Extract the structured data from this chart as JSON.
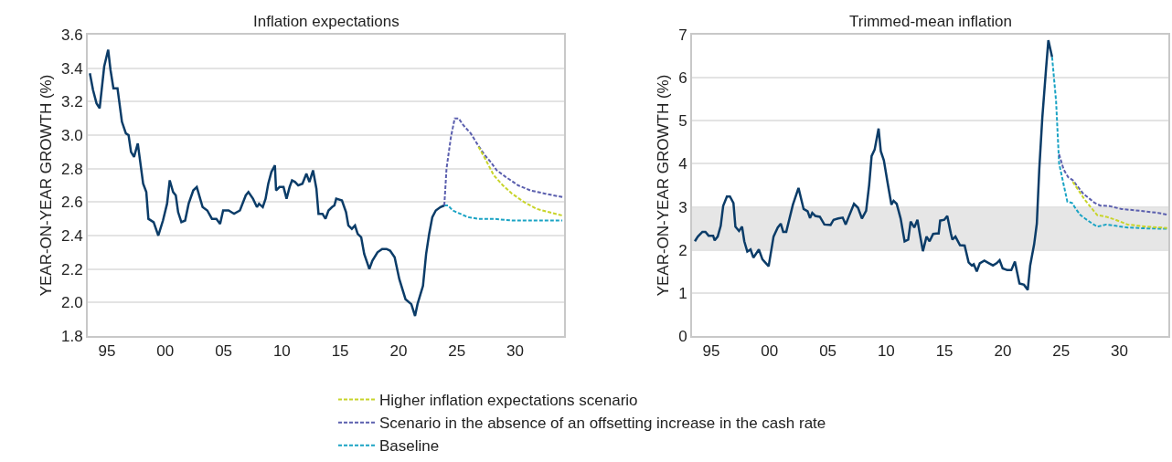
{
  "chart_data": [
    {
      "type": "line",
      "title": "Inflation expectations",
      "ylabel": "YEAR-ON-YEAR GROWTH (%)",
      "xlim": [
        1993.35,
        2034.2
      ],
      "xticks": [
        {
          "value": 1995,
          "label": "95"
        },
        {
          "value": 2000,
          "label": "00"
        },
        {
          "value": 2005,
          "label": "05"
        },
        {
          "value": 2010,
          "label": "10"
        },
        {
          "value": 2015,
          "label": "15"
        },
        {
          "value": 2020,
          "label": "20"
        },
        {
          "value": 2025,
          "label": "25"
        },
        {
          "value": 2030,
          "label": "30"
        }
      ],
      "ylim": [
        1.8,
        3.6
      ],
      "yticks": [
        {
          "value": 1.8,
          "label": "1.8"
        },
        {
          "value": 2.0,
          "label": "2.0"
        },
        {
          "value": 2.2,
          "label": "2.2"
        },
        {
          "value": 2.4,
          "label": "2.4"
        },
        {
          "value": 2.6,
          "label": "2.6"
        },
        {
          "value": 2.8,
          "label": "2.8"
        },
        {
          "value": 3.0,
          "label": "3.0"
        },
        {
          "value": 3.2,
          "label": "3.2"
        },
        {
          "value": 3.4,
          "label": "3.4"
        },
        {
          "value": 3.6,
          "label": "3.6"
        }
      ],
      "grid": "y",
      "legend": "bottom",
      "series": [
        {
          "color": "#0b3c68",
          "line_style": "solid",
          "x": [
            1993.53,
            1993.8,
            1994.1,
            1994.37,
            1994.76,
            1995.1,
            1995.3,
            1995.55,
            1995.9,
            1996.28,
            1996.62,
            1996.85,
            1997.06,
            1997.32,
            1997.64,
            1998.1,
            1998.37,
            1998.55,
            1999.0,
            1999.4,
            1999.8,
            2000.15,
            2000.38,
            2000.67,
            2000.9,
            2001.1,
            2001.38,
            2001.7,
            2002.0,
            2002.4,
            2002.7,
            2003.2,
            2003.6,
            2004.0,
            2004.38,
            2004.7,
            2004.96,
            2005.43,
            2005.9,
            2006.4,
            2006.9,
            2007.13,
            2007.52,
            2007.86,
            2008.04,
            2008.36,
            2008.6,
            2008.83,
            2009.1,
            2009.4,
            2009.5,
            2009.8,
            2010.14,
            2010.4,
            2010.66,
            2010.87,
            2011.13,
            2011.4,
            2011.76,
            2012.1,
            2012.36,
            2012.67,
            2012.96,
            2013.14,
            2013.48,
            2013.74,
            2014.0,
            2014.3,
            2014.5,
            2014.66,
            2015.15,
            2015.5,
            2015.7,
            2016.0,
            2016.27,
            2016.5,
            2016.8,
            2017.06,
            2017.5,
            2017.76,
            2018.2,
            2018.6,
            2018.97,
            2019.28,
            2019.67,
            2020.07,
            2020.6,
            2021.1,
            2021.42,
            2021.63,
            2022.1,
            2022.37,
            2022.63,
            2022.9,
            2023.2,
            2023.6,
            2023.93
          ],
          "values": [
            3.37,
            3.27,
            3.19,
            3.16,
            3.41,
            3.51,
            3.39,
            3.28,
            3.28,
            3.08,
            3.01,
            3.0,
            2.9,
            2.87,
            2.95,
            2.71,
            2.66,
            2.5,
            2.48,
            2.4,
            2.49,
            2.59,
            2.73,
            2.66,
            2.64,
            2.54,
            2.48,
            2.49,
            2.59,
            2.67,
            2.69,
            2.57,
            2.55,
            2.5,
            2.5,
            2.47,
            2.55,
            2.55,
            2.53,
            2.55,
            2.64,
            2.66,
            2.62,
            2.57,
            2.59,
            2.57,
            2.62,
            2.71,
            2.78,
            2.82,
            2.67,
            2.69,
            2.69,
            2.62,
            2.69,
            2.73,
            2.72,
            2.7,
            2.71,
            2.77,
            2.72,
            2.79,
            2.68,
            2.53,
            2.53,
            2.5,
            2.55,
            2.57,
            2.58,
            2.62,
            2.61,
            2.54,
            2.46,
            2.44,
            2.46,
            2.41,
            2.39,
            2.29,
            2.2,
            2.25,
            2.3,
            2.32,
            2.32,
            2.31,
            2.27,
            2.14,
            2.02,
            1.99,
            1.92,
            1.99,
            2.1,
            2.29,
            2.41,
            2.51,
            2.55,
            2.57,
            2.58
          ]
        },
        {
          "name": "Higher inflation expectations scenario",
          "color": "#c8d42a",
          "line_style": "dashed",
          "x": [
            2026.86,
            2027.5,
            2028.17,
            2028.95,
            2029.74,
            2030.78,
            2031.83,
            2032.9,
            2034.05
          ],
          "values": [
            2.93,
            2.85,
            2.76,
            2.7,
            2.65,
            2.6,
            2.56,
            2.54,
            2.52
          ]
        },
        {
          "name": "Scenario in the absence of an offsetting increase in the cash rate",
          "color": "#5b5fae",
          "line_style": "dashed",
          "x": [
            2023.93,
            2024.12,
            2024.5,
            2024.82,
            2025.16,
            2025.55,
            2026.2,
            2026.73,
            2027.4,
            2027.9,
            2028.43,
            2029.2,
            2030.26,
            2031.3,
            2032.6,
            2034.05
          ],
          "values": [
            2.58,
            2.8,
            2.99,
            3.1,
            3.1,
            3.06,
            3.01,
            2.95,
            2.88,
            2.84,
            2.79,
            2.75,
            2.7,
            2.67,
            2.65,
            2.63
          ]
        },
        {
          "name": "Baseline",
          "color": "#1aa3c4",
          "line_style": "dashed",
          "x": [
            2023.93,
            2024.25,
            2024.64,
            2025.3,
            2025.95,
            2026.86,
            2028.17,
            2029.74,
            2031.3,
            2034.05
          ],
          "values": [
            2.58,
            2.58,
            2.55,
            2.53,
            2.51,
            2.5,
            2.5,
            2.49,
            2.49,
            2.49
          ]
        }
      ]
    },
    {
      "type": "line",
      "title": "Trimmed-mean inflation",
      "ylabel": "YEAR-ON-YEAR GROWTH (%)",
      "xlim": [
        1993.35,
        2034.2
      ],
      "xticks": [
        {
          "value": 1995,
          "label": "95"
        },
        {
          "value": 2000,
          "label": "00"
        },
        {
          "value": 2005,
          "label": "05"
        },
        {
          "value": 2010,
          "label": "10"
        },
        {
          "value": 2015,
          "label": "15"
        },
        {
          "value": 2020,
          "label": "20"
        },
        {
          "value": 2025,
          "label": "25"
        },
        {
          "value": 2030,
          "label": "30"
        }
      ],
      "ylim": [
        0,
        7
      ],
      "yticks": [
        0,
        1,
        2,
        3,
        4,
        5,
        6,
        7
      ],
      "grid": "y",
      "bands": [
        {
          "axis": "y",
          "from": 2,
          "to": 3,
          "color": "#e6e6e6"
        }
      ],
      "series": [
        {
          "color": "#0b3c68",
          "line_style": "solid",
          "x": [
            1993.59,
            1993.85,
            1994.24,
            1994.5,
            1994.77,
            1995.16,
            1995.29,
            1995.55,
            1995.81,
            1996.02,
            1996.34,
            1996.6,
            1996.9,
            1997.07,
            1997.38,
            1997.64,
            1997.83,
            1998.09,
            1998.37,
            1998.61,
            1999.08,
            1999.39,
            1999.92,
            2000.34,
            2000.7,
            2000.96,
            2001.17,
            2001.43,
            2002.0,
            2002.48,
            2002.92,
            2003.26,
            2003.47,
            2003.66,
            2003.92,
            2004.31,
            2004.7,
            2005.23,
            2005.49,
            2005.88,
            2006.27,
            2006.53,
            2006.79,
            2007.24,
            2007.58,
            2007.92,
            2008.28,
            2008.54,
            2008.75,
            2009.01,
            2009.35,
            2009.54,
            2009.8,
            2010.11,
            2010.45,
            2010.64,
            2010.9,
            2011.24,
            2011.58,
            2011.89,
            2012.1,
            2012.41,
            2012.68,
            2012.88,
            2013.15,
            2013.46,
            2013.72,
            2014.03,
            2014.3,
            2014.5,
            2014.63,
            2014.98,
            2015.24,
            2015.55,
            2015.68,
            2015.94,
            2016.33,
            2016.73,
            2017.07,
            2017.33,
            2017.51,
            2017.77,
            2018.03,
            2018.42,
            2018.82,
            2019.16,
            2019.47,
            2019.73,
            2019.99,
            2020.39,
            2020.73,
            2021.04,
            2021.43,
            2021.82,
            2022.14,
            2022.35,
            2022.69,
            2022.92,
            2023.13,
            2023.39,
            2023.71,
            2023.91,
            2024.23
          ],
          "values": [
            2.2,
            2.31,
            2.42,
            2.42,
            2.33,
            2.33,
            2.22,
            2.31,
            2.56,
            3.02,
            3.24,
            3.24,
            3.09,
            2.54,
            2.44,
            2.54,
            2.2,
            1.96,
            2.01,
            1.82,
            2.01,
            1.78,
            1.62,
            2.31,
            2.52,
            2.61,
            2.42,
            2.42,
            3.05,
            3.44,
            2.95,
            2.9,
            2.74,
            2.86,
            2.79,
            2.77,
            2.59,
            2.58,
            2.7,
            2.73,
            2.75,
            2.59,
            2.77,
            3.07,
            2.98,
            2.73,
            2.91,
            3.51,
            4.18,
            4.33,
            4.82,
            4.29,
            4.08,
            3.58,
            3.05,
            3.14,
            3.07,
            2.73,
            2.2,
            2.24,
            2.66,
            2.52,
            2.7,
            2.38,
            1.97,
            2.31,
            2.2,
            2.37,
            2.38,
            2.38,
            2.68,
            2.7,
            2.79,
            2.38,
            2.24,
            2.31,
            2.11,
            2.1,
            1.71,
            1.64,
            1.67,
            1.5,
            1.69,
            1.75,
            1.69,
            1.64,
            1.69,
            1.76,
            1.57,
            1.53,
            1.53,
            1.73,
            1.22,
            1.19,
            1.07,
            1.64,
            2.13,
            2.61,
            3.87,
            5.07,
            6.2,
            6.87,
            6.48
          ]
        },
        {
          "color": "#c8d42a",
          "line_style": "dashed",
          "x": [
            2026.0,
            2026.53,
            2027.05,
            2027.58,
            2028.1,
            2028.88,
            2029.67,
            2030.71,
            2032.28,
            2034.1
          ],
          "values": [
            3.58,
            3.37,
            3.16,
            2.98,
            2.81,
            2.77,
            2.7,
            2.59,
            2.54,
            2.51
          ]
        },
        {
          "color": "#5b5fae",
          "line_style": "dashed",
          "x": [
            2024.83,
            2025.22,
            2025.61,
            2026.0,
            2026.4,
            2026.92,
            2027.44,
            2027.84,
            2028.36,
            2029.14,
            2030.19,
            2031.76,
            2033.33,
            2034.1
          ],
          "values": [
            4.22,
            3.87,
            3.69,
            3.62,
            3.48,
            3.3,
            3.19,
            3.1,
            3.03,
            3.02,
            2.95,
            2.91,
            2.86,
            2.82
          ]
        },
        {
          "color": "#1aa3c4",
          "line_style": "dashed",
          "x": [
            2024.23,
            2024.57,
            2024.83,
            2025.17,
            2025.54,
            2025.95,
            2026.27,
            2026.66,
            2027.05,
            2027.58,
            2028.1,
            2028.88,
            2029.67,
            2030.71,
            2032.28,
            2034.1
          ],
          "values": [
            6.48,
            5.46,
            4.01,
            3.58,
            3.12,
            3.09,
            2.95,
            2.81,
            2.73,
            2.63,
            2.54,
            2.59,
            2.56,
            2.52,
            2.5,
            2.49
          ]
        }
      ]
    }
  ]
}
